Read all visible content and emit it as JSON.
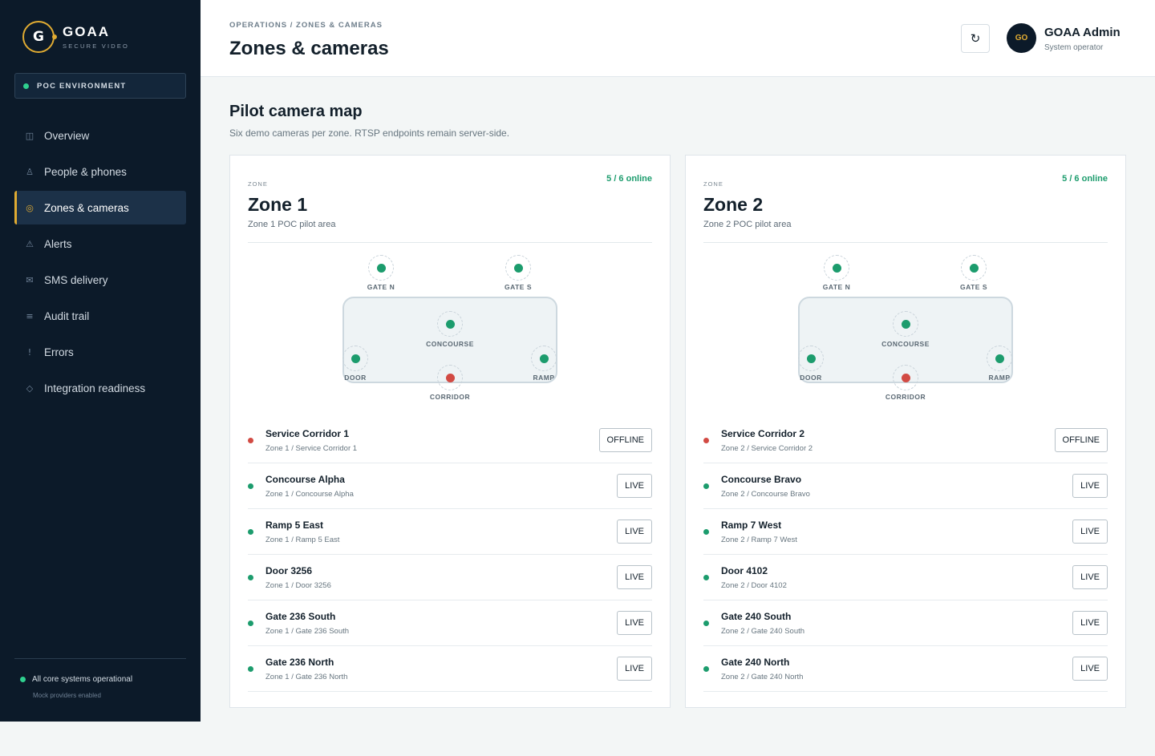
{
  "brand": {
    "name": "GOAA",
    "subtitle": "SECURE VIDEO",
    "logo_letter": "G"
  },
  "environment": {
    "label": "POC ENVIRONMENT",
    "status_color": "#2fd08f"
  },
  "nav": {
    "items": [
      {
        "label": "Overview",
        "icon": "panel-icon",
        "glyph": "◫"
      },
      {
        "label": "People & phones",
        "icon": "person-icon",
        "glyph": "♙"
      },
      {
        "label": "Zones & cameras",
        "icon": "target-icon",
        "glyph": "◎",
        "active": true
      },
      {
        "label": "Alerts",
        "icon": "warning-icon",
        "glyph": "⚠"
      },
      {
        "label": "SMS delivery",
        "icon": "mail-icon",
        "glyph": "✉"
      },
      {
        "label": "Audit trail",
        "icon": "list-icon",
        "glyph": "≡"
      },
      {
        "label": "Errors",
        "icon": "exclamation-icon",
        "glyph": "!"
      },
      {
        "label": "Integration readiness",
        "icon": "diamond-icon",
        "glyph": "◇"
      }
    ]
  },
  "footer": {
    "status": "All core systems operational",
    "sub": "Mock providers enabled"
  },
  "header": {
    "breadcrumb": "OPERATIONS / ZONES & CAMERAS",
    "title": "Zones & cameras",
    "refresh_glyph": "↻",
    "user": {
      "initials": "GO",
      "name": "GOAA Admin",
      "role": "System operator"
    }
  },
  "section": {
    "title": "Pilot camera map",
    "subtitle": "Six demo cameras per zone. RTSP endpoints remain server-side."
  },
  "colors": {
    "online": "#1c9c6d",
    "offline": "#d24a43",
    "accent": "#e0ab32"
  },
  "zones": [
    {
      "eyebrow": "ZONE",
      "name": "Zone 1",
      "description": "Zone 1 POC pilot area",
      "online": "5 / 6 online",
      "map": [
        {
          "label": "GATE N",
          "status": "live"
        },
        {
          "label": "GATE S",
          "status": "live"
        },
        {
          "label": "CONCOURSE",
          "status": "live"
        },
        {
          "label": "DOOR",
          "status": "live"
        },
        {
          "label": "CORRIDOR",
          "status": "offline"
        },
        {
          "label": "RAMP",
          "status": "live"
        }
      ],
      "cameras": [
        {
          "name": "Service Corridor 1",
          "path": "Zone 1 / Service Corridor 1",
          "status": "offline",
          "badge": "OFFLINE"
        },
        {
          "name": "Concourse Alpha",
          "path": "Zone 1 / Concourse Alpha",
          "status": "live",
          "badge": "LIVE"
        },
        {
          "name": "Ramp 5 East",
          "path": "Zone 1 / Ramp 5 East",
          "status": "live",
          "badge": "LIVE"
        },
        {
          "name": "Door 3256",
          "path": "Zone 1 / Door 3256",
          "status": "live",
          "badge": "LIVE"
        },
        {
          "name": "Gate 236 South",
          "path": "Zone 1 / Gate 236 South",
          "status": "live",
          "badge": "LIVE"
        },
        {
          "name": "Gate 236 North",
          "path": "Zone 1 / Gate 236 North",
          "status": "live",
          "badge": "LIVE"
        }
      ]
    },
    {
      "eyebrow": "ZONE",
      "name": "Zone 2",
      "description": "Zone 2 POC pilot area",
      "online": "5 / 6 online",
      "map": [
        {
          "label": "GATE N",
          "status": "live"
        },
        {
          "label": "GATE S",
          "status": "live"
        },
        {
          "label": "CONCOURSE",
          "status": "live"
        },
        {
          "label": "DOOR",
          "status": "live"
        },
        {
          "label": "CORRIDOR",
          "status": "offline"
        },
        {
          "label": "RAMP",
          "status": "live"
        }
      ],
      "cameras": [
        {
          "name": "Service Corridor 2",
          "path": "Zone 2 / Service Corridor 2",
          "status": "offline",
          "badge": "OFFLINE"
        },
        {
          "name": "Concourse Bravo",
          "path": "Zone 2 / Concourse Bravo",
          "status": "live",
          "badge": "LIVE"
        },
        {
          "name": "Ramp 7 West",
          "path": "Zone 2 / Ramp 7 West",
          "status": "live",
          "badge": "LIVE"
        },
        {
          "name": "Door 4102",
          "path": "Zone 2 / Door 4102",
          "status": "live",
          "badge": "LIVE"
        },
        {
          "name": "Gate 240 South",
          "path": "Zone 2 / Gate 240 South",
          "status": "live",
          "badge": "LIVE"
        },
        {
          "name": "Gate 240 North",
          "path": "Zone 2 / Gate 240 North",
          "status": "live",
          "badge": "LIVE"
        }
      ]
    }
  ]
}
